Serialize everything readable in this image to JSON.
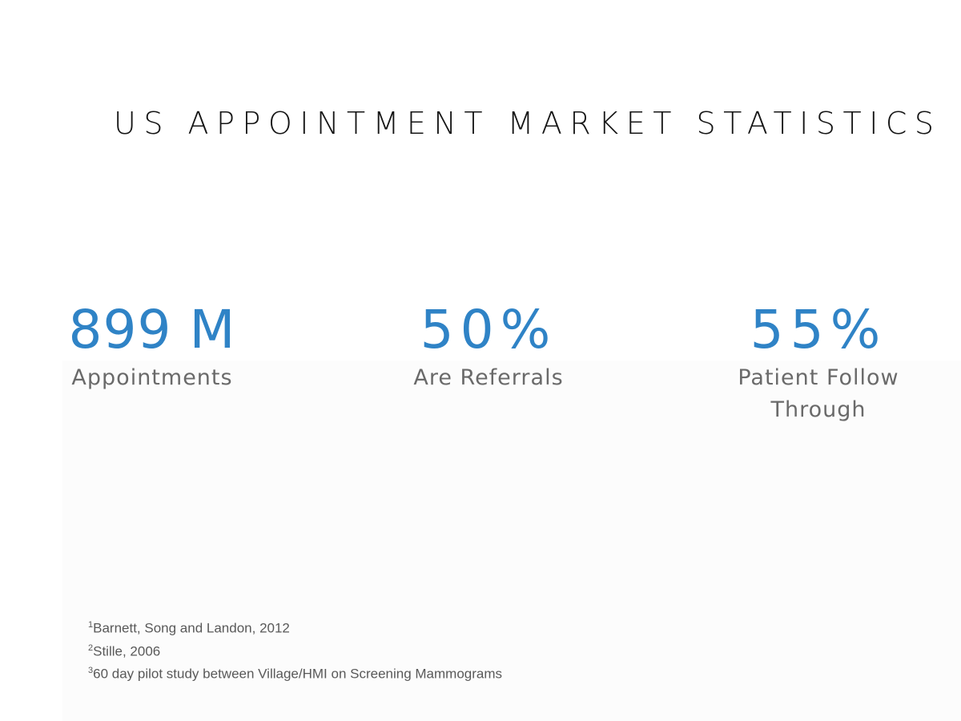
{
  "title": "US APPOINTMENT MARKET STATISTICS",
  "stats": [
    {
      "value": "899 M",
      "label": "Appointments"
    },
    {
      "value": "50%",
      "label": "Are Referrals"
    },
    {
      "value": "55%",
      "label": "Patient Follow Through"
    }
  ],
  "footnotes": [
    {
      "mark": "1",
      "text": "Barnett, Song and Landon, 2012"
    },
    {
      "mark": "2",
      "text": "Stille, 2006"
    },
    {
      "mark": "3",
      "text": "60 day pilot study between Village/HMI on Screening Mammograms"
    }
  ]
}
